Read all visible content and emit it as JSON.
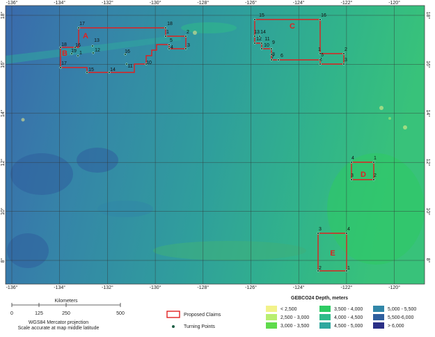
{
  "map": {
    "lon_labels": [
      "-136°",
      "-134°",
      "-132°",
      "-130°",
      "-128°",
      "-126°",
      "-124°",
      "-122°",
      "-120°"
    ],
    "lat_labels": [
      "18°",
      "16°",
      "14°",
      "12°",
      "10°",
      "8°"
    ],
    "claims": [
      {
        "name": "A",
        "points": [
          "17",
          "18",
          "1",
          "2",
          "3",
          "4",
          "5",
          "13",
          "12",
          "16",
          "10",
          "11",
          "14",
          "15"
        ]
      },
      {
        "name": "B",
        "points": [
          "18",
          "17",
          "19",
          "16",
          "1"
        ]
      },
      {
        "name": "C",
        "points": [
          "15",
          "16",
          "1",
          "2",
          "3",
          "4",
          "5",
          "6",
          "7",
          "8",
          "9",
          "10",
          "11",
          "12",
          "13",
          "14"
        ]
      },
      {
        "name": "D",
        "points": [
          "4",
          "1",
          "2",
          "3"
        ]
      },
      {
        "name": "E",
        "points": [
          "3",
          "4",
          "1",
          "2"
        ]
      }
    ],
    "scale_bar": {
      "title": "Kilometers",
      "ticks": [
        "0",
        "125",
        "250",
        "500"
      ],
      "notes": [
        "WGS84 Mercator projection",
        "Scale accurate at map middle latitude"
      ]
    },
    "symbols": {
      "claims": "Proposed Claims",
      "points": "Turning Points"
    },
    "depth_legend": {
      "title": "GEBCO24 Depth, meters",
      "classes": [
        {
          "label": "< 2,500",
          "color": "#f2f28a"
        },
        {
          "label": "2,500 - 3,000",
          "color": "#b8ee70"
        },
        {
          "label": "3,000 - 3,500",
          "color": "#5fdb4c"
        },
        {
          "label": "3,500 - 4,000",
          "color": "#2ecb63"
        },
        {
          "label": "4,000 - 4,500",
          "color": "#2fbb8a"
        },
        {
          "label": "4,500 - 5,000",
          "color": "#2fa89e"
        },
        {
          "label": "5,000 - 5,500",
          "color": "#3187a8"
        },
        {
          "label": "5,500-6,000",
          "color": "#2f5f9e"
        },
        {
          "label": "> 6,000",
          "color": "#2a2f86"
        }
      ]
    }
  }
}
